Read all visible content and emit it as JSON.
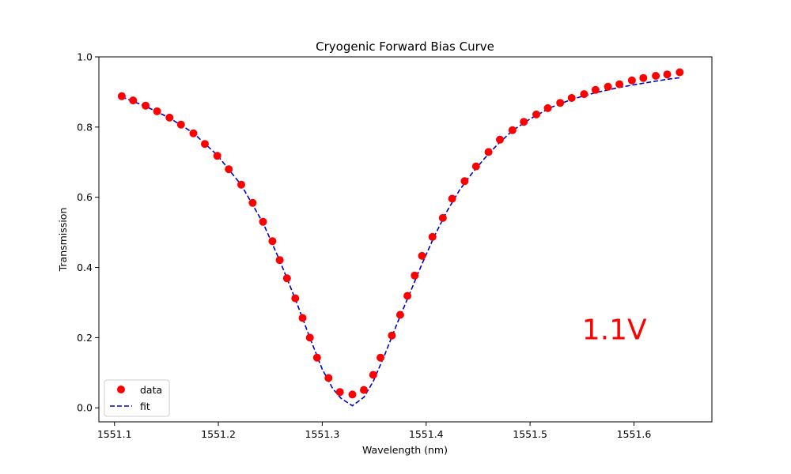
{
  "chart_data": {
    "type": "scatter",
    "title": "Cryogenic Forward Bias Curve",
    "xlabel": "Wavelength (nm)",
    "ylabel": "Transmission",
    "xlim": [
      1551.085,
      1551.675
    ],
    "ylim": [
      -0.04,
      1.0
    ],
    "x_ticks": [
      1551.1,
      1551.2,
      1551.3,
      1551.4,
      1551.5,
      1551.6
    ],
    "y_ticks": [
      0.0,
      0.2,
      0.4,
      0.6,
      0.8,
      1.0
    ],
    "grid": false,
    "legend_position": "lower-left",
    "annotation": {
      "text": "1.1V",
      "x": 1551.55,
      "y": 0.2,
      "color": "#ff0000"
    },
    "series": [
      {
        "name": "data",
        "style": "markers",
        "color": "#ff0000",
        "x": [
          1551.107,
          1551.118,
          1551.13,
          1551.141,
          1551.153,
          1551.164,
          1551.176,
          1551.187,
          1551.199,
          1551.21,
          1551.222,
          1551.233,
          1551.243,
          1551.252,
          1551.259,
          1551.266,
          1551.274,
          1551.281,
          1551.288,
          1551.295,
          1551.306,
          1551.317,
          1551.329,
          1551.34,
          1551.349,
          1551.356,
          1551.367,
          1551.375,
          1551.382,
          1551.389,
          1551.396,
          1551.406,
          1551.416,
          1551.425,
          1551.437,
          1551.448,
          1551.46,
          1551.471,
          1551.483,
          1551.494,
          1551.506,
          1551.517,
          1551.529,
          1551.54,
          1551.552,
          1551.563,
          1551.575,
          1551.586,
          1551.598,
          1551.609,
          1551.621,
          1551.632,
          1551.644
        ],
        "y": [
          0.888,
          0.876,
          0.861,
          0.845,
          0.827,
          0.807,
          0.782,
          0.752,
          0.718,
          0.68,
          0.636,
          0.584,
          0.53,
          0.475,
          0.421,
          0.369,
          0.312,
          0.256,
          0.2,
          0.143,
          0.085,
          0.045,
          0.038,
          0.051,
          0.094,
          0.143,
          0.206,
          0.265,
          0.319,
          0.377,
          0.433,
          0.487,
          0.541,
          0.596,
          0.646,
          0.688,
          0.729,
          0.764,
          0.791,
          0.815,
          0.836,
          0.854,
          0.869,
          0.883,
          0.894,
          0.906,
          0.915,
          0.922,
          0.933,
          0.94,
          0.946,
          0.95,
          0.956
        ]
      },
      {
        "name": "fit",
        "style": "dashed",
        "color": "#0000cc",
        "x": [
          1551.107,
          1551.13,
          1551.153,
          1551.176,
          1551.199,
          1551.222,
          1551.243,
          1551.259,
          1551.274,
          1551.288,
          1551.3,
          1551.31,
          1551.318,
          1551.329,
          1551.34,
          1551.349,
          1551.36,
          1551.372,
          1551.384,
          1551.396,
          1551.408,
          1551.42,
          1551.432,
          1551.444,
          1551.456,
          1551.468,
          1551.483,
          1551.5,
          1551.52,
          1551.54,
          1551.563,
          1551.586,
          1551.609,
          1551.632,
          1551.645
        ],
        "y": [
          0.886,
          0.859,
          0.826,
          0.783,
          0.72,
          0.635,
          0.527,
          0.42,
          0.31,
          0.2,
          0.11,
          0.055,
          0.027,
          0.006,
          0.03,
          0.075,
          0.15,
          0.24,
          0.325,
          0.41,
          0.49,
          0.56,
          0.62,
          0.668,
          0.71,
          0.748,
          0.79,
          0.823,
          0.856,
          0.879,
          0.898,
          0.913,
          0.925,
          0.936,
          0.941
        ]
      }
    ]
  }
}
